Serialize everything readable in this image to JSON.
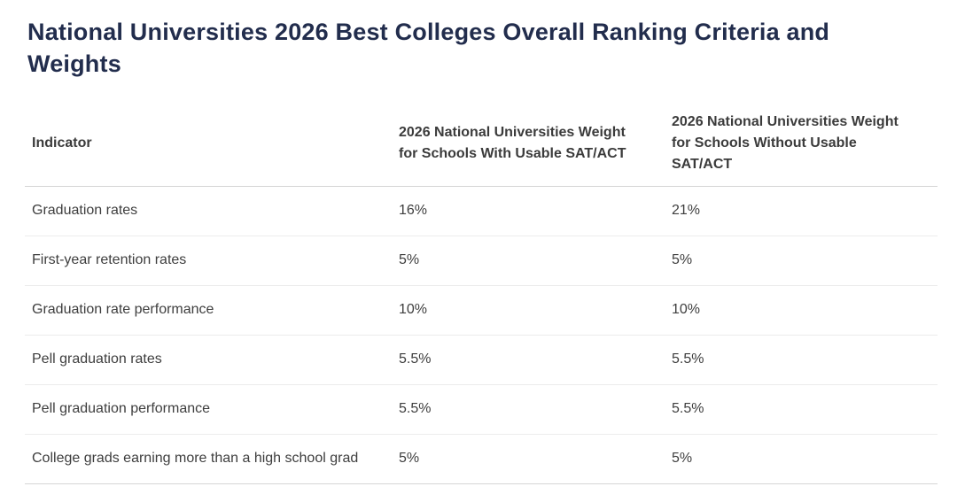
{
  "page": {
    "title": "National Universities 2026 Best Colleges Overall Ranking Criteria and Weights"
  },
  "chart_data": {
    "type": "table",
    "title": "National Universities 2026 Best Colleges Overall Ranking Criteria and Weights",
    "columns": [
      "Indicator",
      "2026 National Universities Weight for Schools With Usable SAT/ACT",
      "2026 National Universities Weight for Schools Without Usable SAT/ACT"
    ],
    "header_lines": {
      "col1": [
        "Indicator"
      ],
      "col2": [
        "2026 National Universities Weight",
        "for Schools With Usable SAT/ACT"
      ],
      "col3": [
        "2026 National Universities Weight",
        "for Schools Without Usable",
        "SAT/ACT"
      ]
    },
    "rows": [
      {
        "indicator": "Graduation rates",
        "with_sat": "16%",
        "without_sat": "21%"
      },
      {
        "indicator": "First-year retention rates",
        "with_sat": "5%",
        "without_sat": "5%"
      },
      {
        "indicator": "Graduation rate performance",
        "with_sat": "10%",
        "without_sat": "10%"
      },
      {
        "indicator": "Pell graduation rates",
        "with_sat": "5.5%",
        "without_sat": "5.5%"
      },
      {
        "indicator": "Pell graduation performance",
        "with_sat": "5.5%",
        "without_sat": "5.5%"
      },
      {
        "indicator": "College grads earning more than a high school grad",
        "with_sat": "5%",
        "without_sat": "5%"
      }
    ],
    "values_numeric": {
      "with_sat_percent": [
        16,
        5,
        10,
        5.5,
        5.5,
        5
      ],
      "without_sat_percent": [
        21,
        5,
        10,
        5.5,
        5.5,
        5
      ]
    },
    "layout": {
      "grid": "horizontal row separators only",
      "legend": "none"
    }
  },
  "colors": {
    "background": "#ffffff",
    "title_text": "#222d4d",
    "header_text": "#3b3b3b",
    "body_text": "#3e3e3e",
    "row_border": "#ececec",
    "strong_border": "#d5d5d5"
  }
}
